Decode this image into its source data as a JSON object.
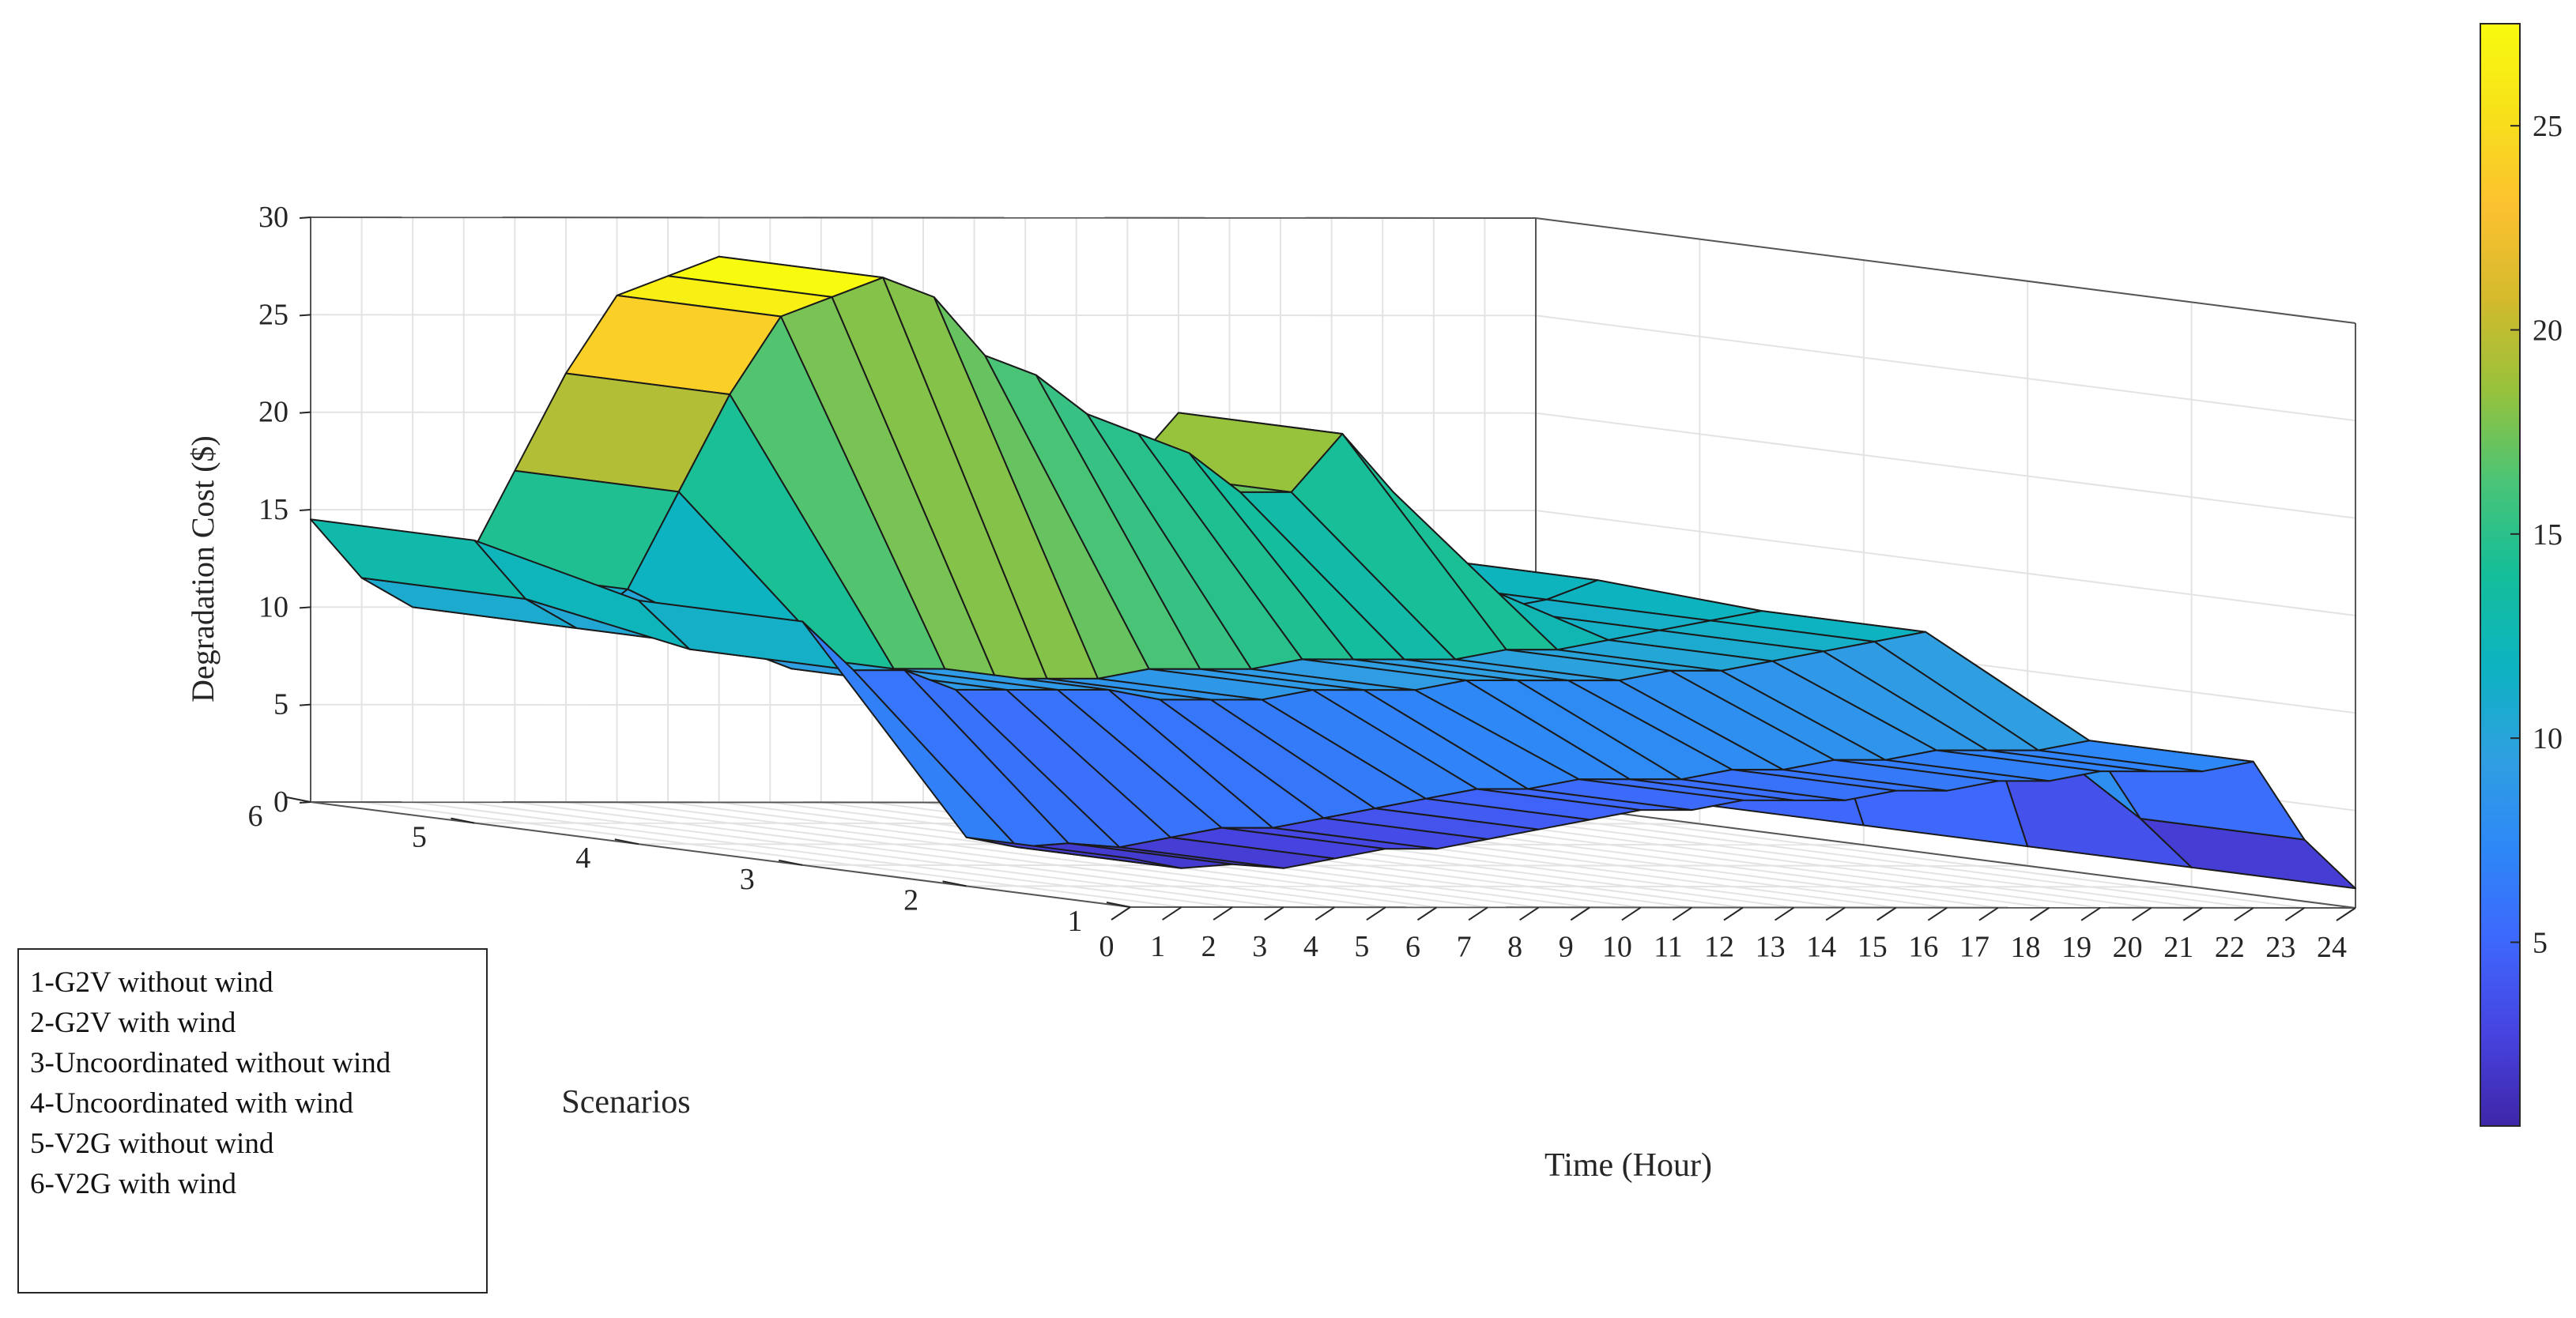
{
  "chart_data": {
    "type": "surface3d",
    "zlabel": "Degradation Cost ($)",
    "xlabel": "Time (Hour)",
    "ylabel": "Scenarios",
    "time": [
      0,
      1,
      2,
      3,
      4,
      5,
      6,
      7,
      8,
      9,
      10,
      11,
      12,
      13,
      14,
      15,
      16,
      17,
      18,
      19,
      20,
      21,
      22,
      23,
      24
    ],
    "scenarios": [
      1,
      2,
      3,
      4,
      5,
      6
    ],
    "z": [
      [
        2.5,
        2.0,
        2.2,
        2.0,
        2.5,
        3.0,
        3.0,
        3.5,
        4.0,
        4.5,
        5.0,
        5.0,
        5.5,
        5.5,
        5.5,
        6.0,
        6.0,
        6.5,
        6.5,
        7.0,
        7.0,
        7.0,
        7.5,
        3.5,
        1.0
      ],
      [
        2.5,
        2.0,
        2.2,
        2.0,
        2.5,
        3.0,
        3.0,
        3.5,
        4.0,
        4.5,
        5.0,
        5.0,
        5.5,
        5.5,
        5.5,
        6.0,
        6.0,
        6.5,
        6.5,
        7.0,
        7.0,
        7.0,
        7.5,
        3.5,
        1.0
      ],
      [
        12.5,
        10.0,
        10.0,
        9.0,
        9.0,
        9.0,
        9.0,
        8.5,
        8.5,
        8.5,
        9.0,
        9.0,
        9.0,
        9.5,
        9.5,
        9.5,
        9.5,
        10.0,
        10.0,
        10.5,
        11.0,
        11.5,
        12.0,
        9.0,
        1.0
      ],
      [
        12.5,
        10.0,
        10.0,
        9.0,
        9.0,
        9.0,
        9.0,
        8.5,
        8.5,
        8.5,
        9.0,
        9.0,
        9.0,
        9.5,
        9.5,
        9.5,
        9.5,
        10.0,
        10.0,
        10.5,
        11.0,
        11.5,
        12.0,
        9.0,
        1.0
      ],
      [
        14.5,
        11.5,
        10.0,
        12.0,
        17.0,
        22.0,
        26.0,
        27.0,
        28.0,
        27.0,
        24.0,
        23.0,
        21.0,
        20.0,
        19.0,
        17.0,
        17.0,
        20.0,
        17.0,
        13.0,
        11.0,
        11.5,
        12.5,
        9.0,
        1.0
      ],
      [
        14.5,
        11.5,
        10.0,
        12.0,
        17.0,
        22.0,
        26.0,
        27.0,
        28.0,
        27.0,
        24.0,
        23.0,
        21.0,
        20.0,
        19.0,
        17.0,
        17.0,
        20.0,
        17.0,
        13.0,
        11.0,
        11.5,
        12.5,
        9.0,
        1.0
      ]
    ],
    "zlim": [
      0,
      30
    ],
    "zticks": [
      0,
      5,
      10,
      15,
      20,
      25,
      30
    ],
    "xticks": [
      "0",
      "1",
      "2",
      "3",
      "4",
      "5",
      "6",
      "7",
      "8",
      "9",
      "10",
      "11",
      "12",
      "13",
      "14",
      "15",
      "16",
      "17",
      "18",
      "19",
      "20",
      "21",
      "22",
      "23",
      "24"
    ],
    "yticks": [
      "1",
      "2",
      "3",
      "4",
      "5",
      "6"
    ],
    "colorbar": {
      "ticks": [
        "5",
        "10",
        "15",
        "20",
        "25"
      ],
      "values": [
        5,
        10,
        15,
        20,
        25
      ],
      "range": [
        0.5,
        27.5
      ]
    },
    "grid": true,
    "legend_position": "bottom-left"
  },
  "legend": {
    "lines": [
      "1-G2V without wind",
      "2-G2V with wind",
      "3-Uncoordinated without wind",
      "4-Uncoordinated with wind",
      "5-V2G without wind",
      "6-V2G with wind"
    ]
  },
  "colors": {
    "axis": "#262626",
    "grid": "#e3e3e3",
    "edge": "#1a1a1a",
    "parula": [
      "#3e26a8",
      "#4743e0",
      "#3e67fc",
      "#2e87f7",
      "#2f9fe1",
      "#0db3c1",
      "#14be9a",
      "#49c477",
      "#96c23c",
      "#d4ba2c",
      "#fcc130",
      "#f7e01b",
      "#f9fb0e"
    ]
  }
}
